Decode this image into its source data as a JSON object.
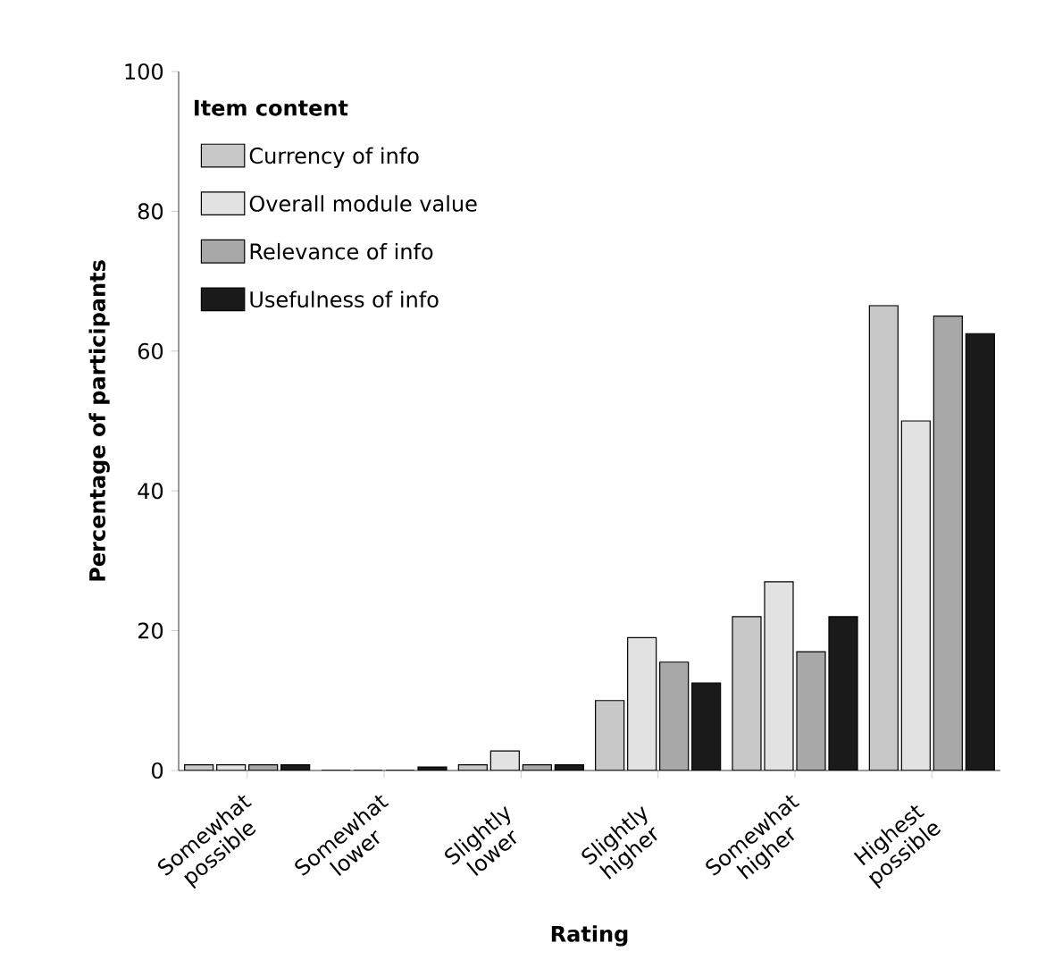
{
  "chart_data": {
    "type": "bar",
    "xlabel": "Rating",
    "ylabel": "Percentage of participants",
    "legend_title": "Item content",
    "categories": [
      "Somewhat possible",
      "Somewhat lower",
      "Slightly lower",
      "Slightly higher",
      "Somewhat higher",
      "Highest possible"
    ],
    "series": [
      {
        "name": "Currency of info",
        "color": "#c8c8c8",
        "values": [
          0.8,
          0,
          0.8,
          10,
          22,
          66.5
        ]
      },
      {
        "name": "Overall module value",
        "color": "#e2e2e2",
        "values": [
          0.8,
          0,
          2.8,
          19,
          27,
          50
        ]
      },
      {
        "name": "Relevance of info",
        "color": "#a8a8a8",
        "values": [
          0.8,
          0,
          0.8,
          15.5,
          17,
          65
        ]
      },
      {
        "name": "Usefulness of info",
        "color": "#1a1a1a",
        "values": [
          0.8,
          0.5,
          0.8,
          12.5,
          22,
          62.5
        ]
      }
    ],
    "ylim": [
      0,
      100
    ],
    "yticks": [
      0,
      20,
      40,
      60,
      80,
      100
    ],
    "grid": false,
    "legend": "top left"
  }
}
